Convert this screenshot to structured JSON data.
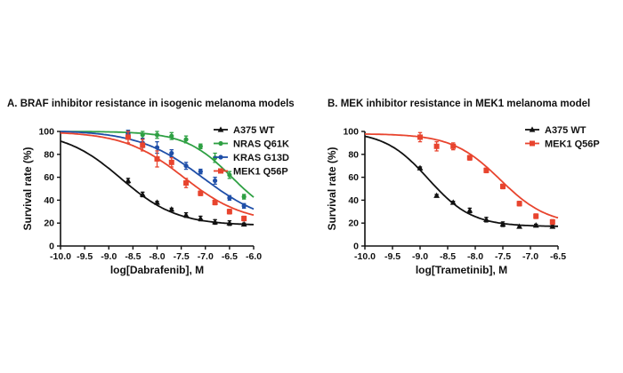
{
  "chart_data": [
    {
      "type": "line",
      "title": "A. BRAF inhibitor resistance in isogenic melanoma models",
      "xlabel": "log[Dabrafenib], M",
      "ylabel": "Survival rate (%)",
      "xlim": [
        -10.0,
        -6.0
      ],
      "ylim": [
        0,
        110
      ],
      "xticks": [
        "-10.0",
        "-9.5",
        "-9.0",
        "-8.5",
        "-8.0",
        "-7.5",
        "-7.0",
        "-6.5",
        "-6.0"
      ],
      "yticks": [
        "0",
        "20",
        "40",
        "60",
        "80",
        "100"
      ],
      "legend_position": "top-right",
      "x": [
        -8.6,
        -8.3,
        -8.0,
        -7.7,
        -7.4,
        -7.1,
        -6.8,
        -6.5,
        -6.2
      ],
      "series": [
        {
          "name": "A375 WT",
          "color": "#111111",
          "marker": "triangle",
          "values": [
            57,
            45,
            38,
            32,
            27,
            24,
            21,
            20,
            19
          ],
          "errors": [
            2,
            2,
            1,
            1,
            2,
            2,
            2,
            2,
            1
          ],
          "fit": {
            "top": 100,
            "bottom": 18,
            "logic50": -8.75,
            "hill": 0.75
          }
        },
        {
          "name": "NRAS Q61K",
          "color": "#2ea043",
          "marker": "circle",
          "values": [
            98,
            97,
            97,
            96,
            93,
            87,
            77,
            62,
            43
          ],
          "errors": [
            3,
            3,
            3,
            3,
            3,
            2,
            4,
            3,
            2
          ],
          "fit": {
            "top": 100,
            "bottom": 20,
            "logic50": -6.45,
            "hill": 0.9
          }
        },
        {
          "name": "KRAS G13D",
          "color": "#1f4fa8",
          "marker": "circle",
          "values": [
            98,
            90,
            86,
            81,
            70,
            65,
            57,
            42,
            35
          ],
          "errors": [
            3,
            4,
            5,
            3,
            3,
            2,
            3,
            2,
            2
          ],
          "fit": {
            "top": 101,
            "bottom": 18,
            "logic50": -7.05,
            "hill": 0.65
          }
        },
        {
          "name": "MEK1 Q56P",
          "color": "#e8442e",
          "marker": "square",
          "values": [
            95,
            88,
            76,
            73,
            55,
            46,
            38,
            30,
            24
          ],
          "errors": [
            5,
            5,
            7,
            4,
            4,
            2,
            2,
            2,
            2
          ],
          "fit": {
            "top": 100,
            "bottom": 20,
            "logic50": -7.45,
            "hill": 0.7
          }
        }
      ]
    },
    {
      "type": "line",
      "title": "B. MEK inhibitor resistance in MEK1 melanoma model",
      "xlabel": "log[Trametinib], M",
      "ylabel": "Survival rate (%)",
      "xlim": [
        -10.0,
        -6.5
      ],
      "ylim": [
        0,
        110
      ],
      "xticks": [
        "-10.0",
        "-9.5",
        "-9.0",
        "-8.5",
        "-8.0",
        "-7.5",
        "-7.0",
        "-6.5"
      ],
      "yticks": [
        "0",
        "20",
        "40",
        "60",
        "80",
        "100"
      ],
      "legend_position": "top-right",
      "x": [
        -9.0,
        -8.7,
        -8.4,
        -8.1,
        -7.8,
        -7.5,
        -7.2,
        -6.9,
        -6.6
      ],
      "series": [
        {
          "name": "A375 WT",
          "color": "#111111",
          "marker": "triangle",
          "values": [
            68,
            44,
            38,
            31,
            23,
            19,
            17,
            18,
            17
          ],
          "errors": [
            1,
            1,
            1,
            2,
            2,
            2,
            1,
            1,
            1
          ],
          "fit": {
            "top": 100,
            "bottom": 17,
            "logic50": -8.85,
            "hill": 1.1
          }
        },
        {
          "name": "MEK1 Q56P",
          "color": "#e8442e",
          "marker": "square",
          "values": [
            95,
            87,
            87,
            77,
            66,
            52,
            37,
            26,
            21
          ],
          "errors": [
            4,
            4,
            3,
            2,
            2,
            2,
            2,
            2,
            2
          ],
          "fit": {
            "top": 98,
            "bottom": 18,
            "logic50": -7.55,
            "hill": 1.0
          }
        }
      ]
    }
  ]
}
